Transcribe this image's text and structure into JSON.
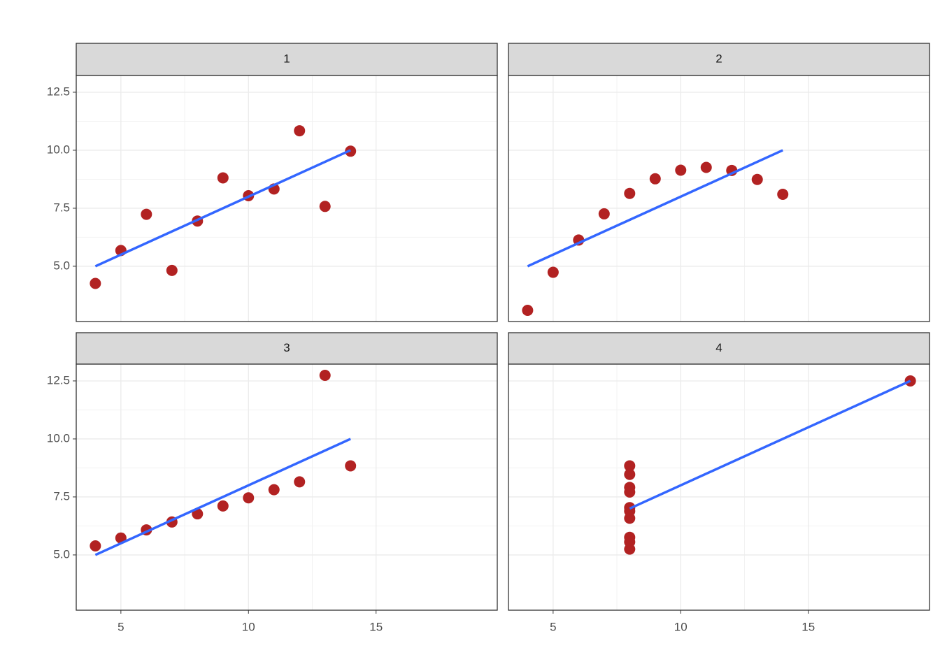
{
  "chart_data": {
    "type": "facet",
    "xlim": [
      3.25,
      19.75
    ],
    "ylim": [
      2.618,
      13.222
    ],
    "xticks": [
      5,
      10,
      15
    ],
    "yticks": [
      {
        "value": 5,
        "label": "5.0"
      },
      7.5,
      {
        "value": 10,
        "label": "10.0"
      },
      12.5
    ],
    "grid": true,
    "grid_minor": true,
    "point_color": "#b22222",
    "line_color": "#3366ff",
    "panels": [
      {
        "type": "scatter",
        "title": "1",
        "x": [
          10,
          8,
          13,
          9,
          11,
          14,
          6,
          4,
          12,
          7,
          5
        ],
        "values": [
          8.04,
          6.95,
          7.58,
          8.81,
          8.33,
          9.96,
          7.24,
          4.26,
          10.84,
          4.82,
          5.68
        ],
        "fit": {
          "x": [
            4,
            14
          ],
          "values": [
            5,
            10
          ]
        }
      },
      {
        "type": "scatter",
        "title": "2",
        "x": [
          10,
          8,
          13,
          9,
          11,
          14,
          6,
          4,
          12,
          7,
          5
        ],
        "values": [
          9.14,
          8.14,
          8.74,
          8.77,
          9.26,
          8.1,
          6.13,
          3.1,
          9.13,
          7.26,
          4.74
        ],
        "fit": {
          "x": [
            4,
            14
          ],
          "values": [
            5,
            10
          ]
        }
      },
      {
        "type": "scatter",
        "title": "3",
        "x": [
          10,
          8,
          13,
          9,
          11,
          14,
          6,
          4,
          12,
          7,
          5
        ],
        "values": [
          7.46,
          6.77,
          12.74,
          7.11,
          7.81,
          8.84,
          6.08,
          5.39,
          8.15,
          6.42,
          5.73
        ],
        "fit": {
          "x": [
            4,
            14
          ],
          "values": [
            5,
            10
          ]
        }
      },
      {
        "type": "scatter",
        "title": "4",
        "x": [
          8,
          8,
          8,
          8,
          8,
          8,
          8,
          19,
          8,
          8,
          8
        ],
        "values": [
          6.58,
          5.76,
          7.71,
          8.84,
          8.47,
          7.04,
          5.25,
          12.5,
          5.56,
          7.91,
          6.89
        ],
        "fit": {
          "x": [
            8,
            19
          ],
          "values": [
            7,
            12.5
          ]
        }
      }
    ]
  }
}
